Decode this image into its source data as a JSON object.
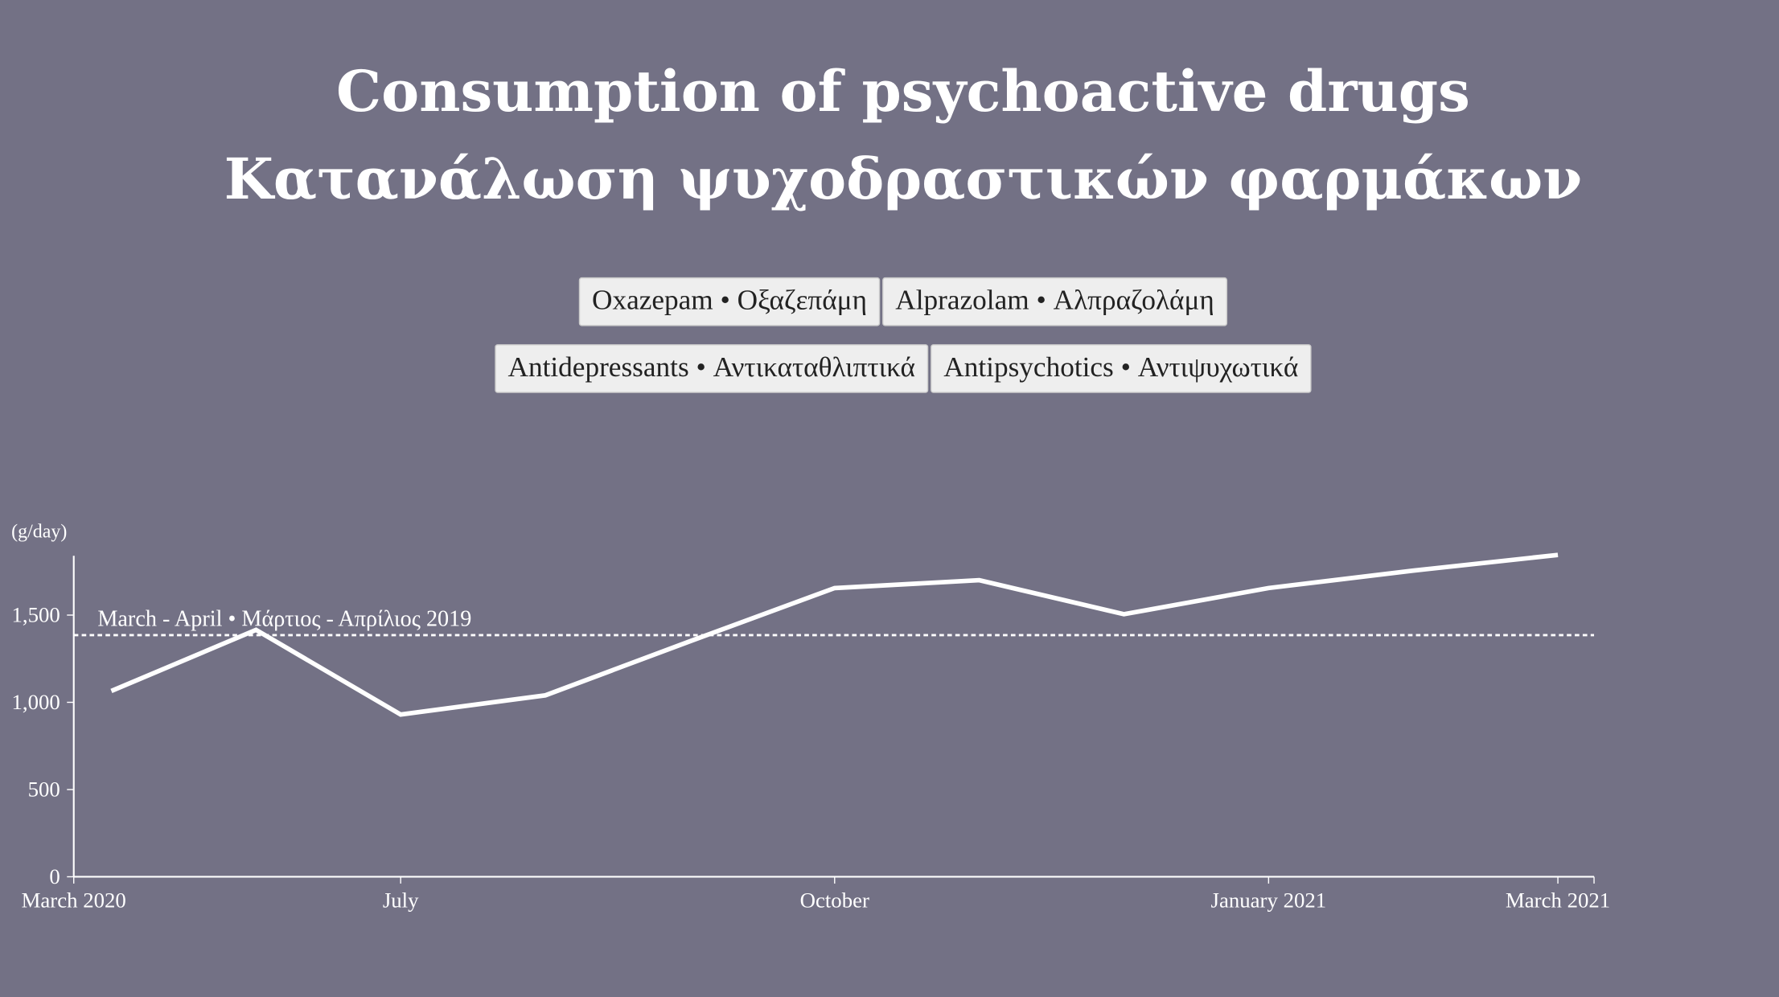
{
  "chart_data": {
    "type": "line",
    "title": "Consumption of psychoactive drugs",
    "subtitle": "Κατανάλωση ψυχοδραστικών φαρμάκων",
    "legend_buttons": [
      "Oxazepam • Οξαζεπάμη",
      "Alprazolam • Αλπραζολάμη",
      "Antidepressants • Αντικαταθλιπτικά",
      "Antipsychotics • Αντιψυχωτικά"
    ],
    "y_label": "(g/day)",
    "x": [
      0,
      1,
      2,
      3,
      4,
      5,
      6,
      7,
      8,
      9,
      10
    ],
    "series": [
      {
        "color": "#ffffff",
        "values": [
          1065,
          1415,
          930,
          1040,
          1350,
          1655,
          1700,
          1505,
          1655,
          1755,
          1845
        ]
      }
    ],
    "reference": {
      "value": 1385,
      "label": "March - April • Μάρτιος - Απρίλιος 2019"
    },
    "xlim": [
      -0.26,
      10.25
    ],
    "xticks": [
      {
        "value": -0.26,
        "label": "March 2020"
      },
      {
        "value": 2,
        "label": "July"
      },
      {
        "value": 5,
        "label": "October"
      },
      {
        "value": 8,
        "label": "January 2021"
      },
      {
        "value": 10,
        "label": "March 2021"
      }
    ],
    "ylim": [
      0,
      1840
    ],
    "yticks": [
      0,
      500,
      {
        "value": 1000,
        "label": "1,000"
      },
      {
        "value": 1500,
        "label": "1,500"
      }
    ]
  }
}
